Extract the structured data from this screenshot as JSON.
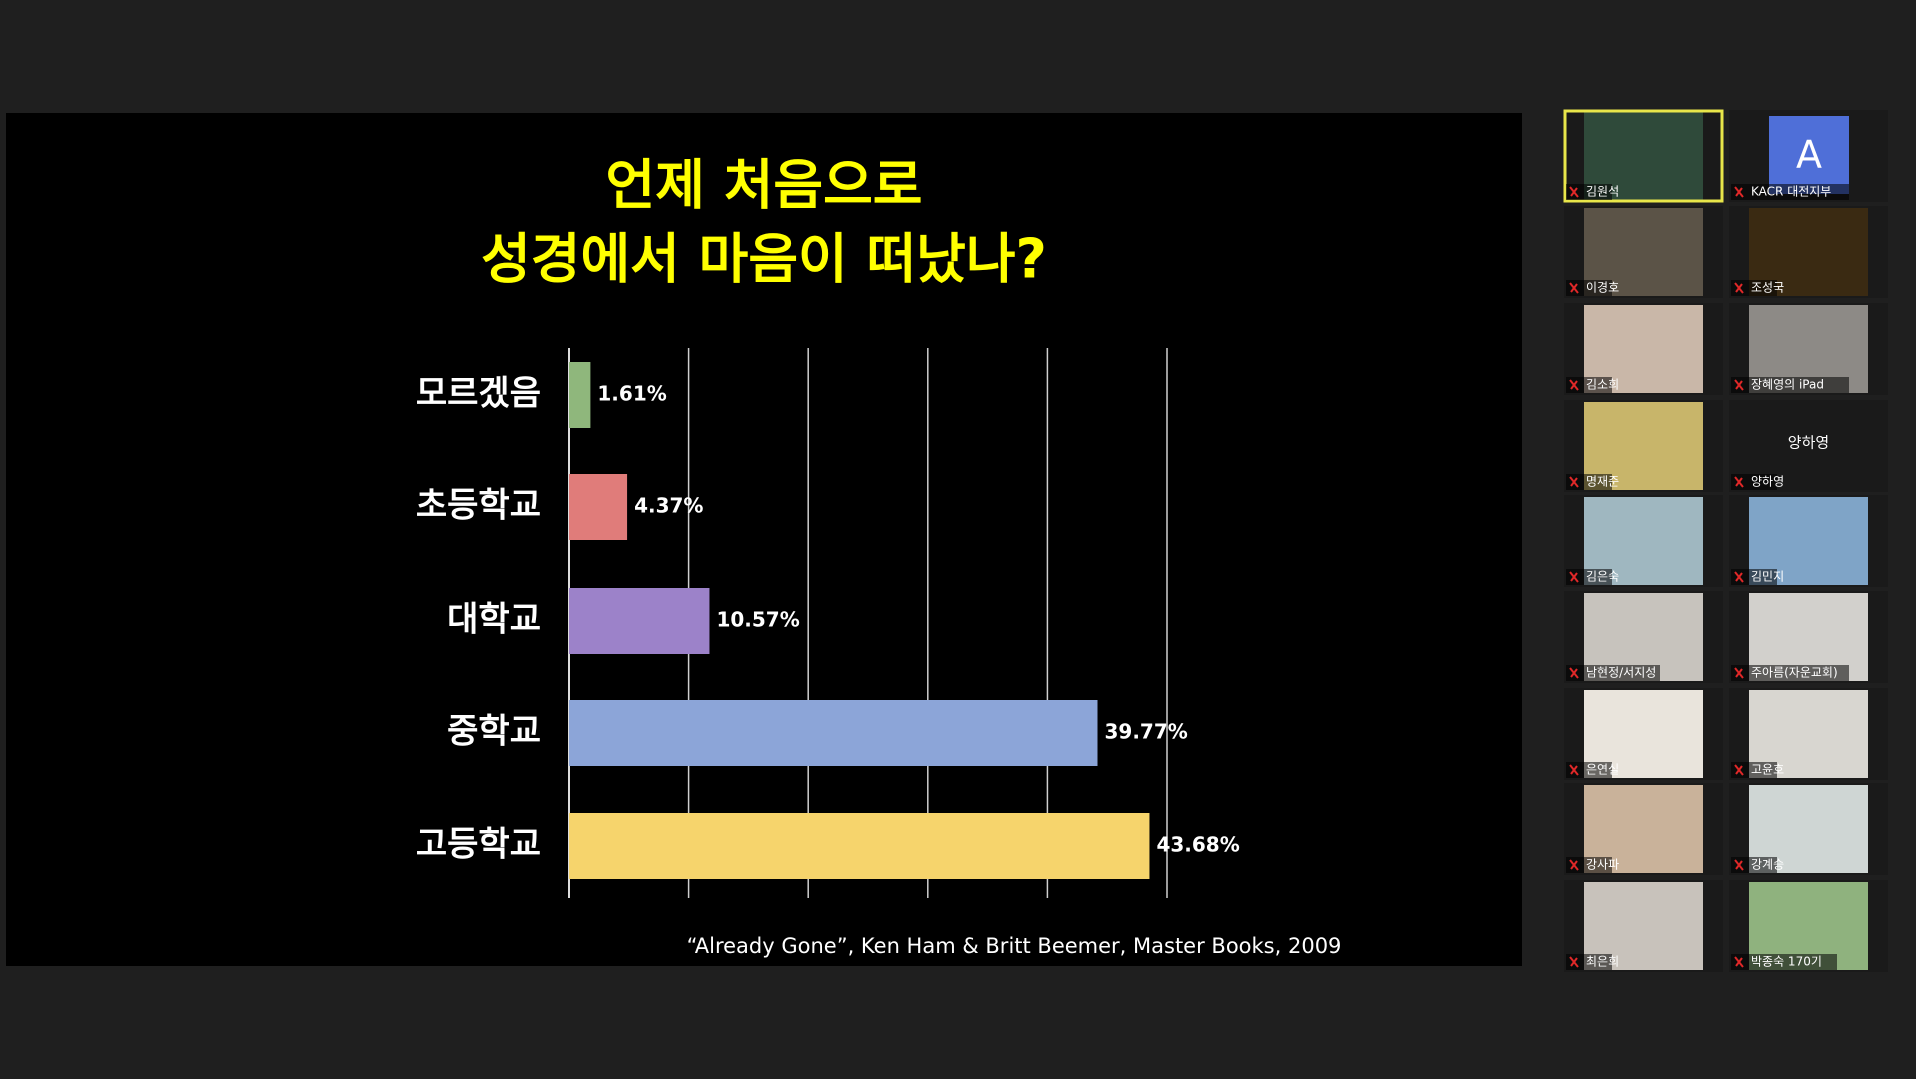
{
  "chart_data": {
    "type": "bar",
    "orientation": "horizontal",
    "title_lines": [
      "언제 처음으로",
      "성경에서 마음이 떠났나?"
    ],
    "categories": [
      "모르겠음",
      "초등학교",
      "대학교",
      "중학교",
      "고등학교"
    ],
    "values": [
      1.61,
      4.37,
      10.57,
      39.77,
      43.68
    ],
    "value_labels": [
      "1.61%",
      "4.37%",
      "10.57%",
      "39.77%",
      "43.68%"
    ],
    "colors": [
      "#8fb77c",
      "#e07c7a",
      "#9c82c9",
      "#8ca5d8",
      "#f6d46c"
    ],
    "xlim": [
      0,
      45
    ],
    "xticks": [
      0,
      9,
      18,
      27,
      36,
      45
    ],
    "grid": true,
    "source": "“Already Gone”, Ken Ham & Britt Beemer, Master Books, 2009"
  },
  "participants": [
    {
      "name": "김원석"
    },
    {
      "name": "KACR 대전지부",
      "avatar": "A"
    },
    {
      "name": "이경호"
    },
    {
      "name": "조성국"
    },
    {
      "name": "김소희"
    },
    {
      "name": "장혜영의 iPad"
    },
    {
      "name": "명재준"
    },
    {
      "name": "양하영"
    },
    {
      "name": "김은숙"
    },
    {
      "name": "김민지"
    },
    {
      "name": "남현정/서지성"
    },
    {
      "name": "주아름(자운교회)"
    },
    {
      "name": "은연실"
    },
    {
      "name": "고윤호"
    },
    {
      "name": "강사파"
    },
    {
      "name": "강계승"
    },
    {
      "name": "최은희"
    },
    {
      "name": "박종숙 170기"
    }
  ]
}
